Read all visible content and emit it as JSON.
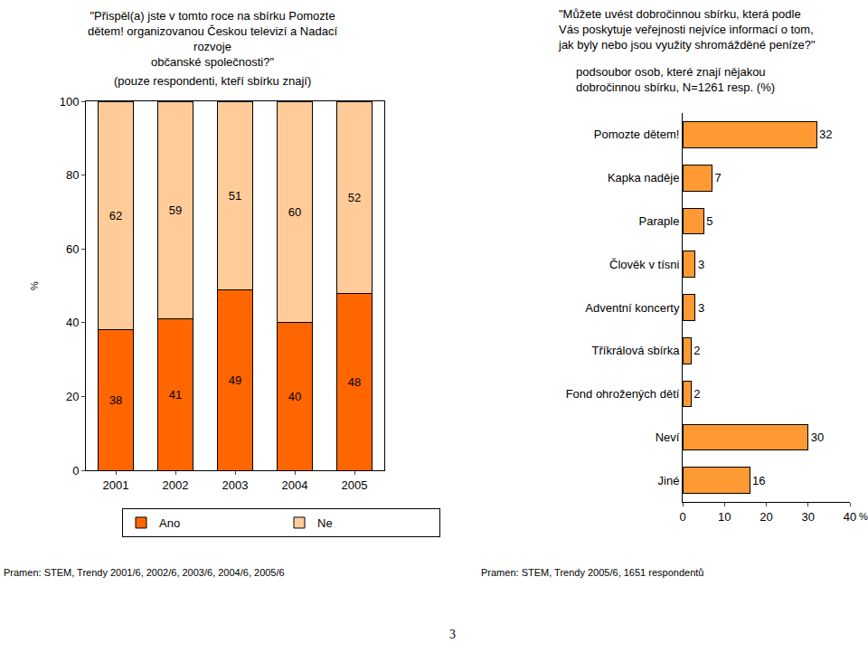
{
  "chart_data": [
    {
      "type": "bar",
      "title": "\"Přispěl(a) jste v tomto roce na sbírku Pomozte\ndětem! organizovanou Českou televizí a Nadací\nrozvoje\nobčanské společnosti?\"",
      "subtitle": "(pouze respondenti, kteří sbírku znají)",
      "y_label": "%",
      "categories": [
        "2001",
        "2002",
        "2003",
        "2004",
        "2005"
      ],
      "series": [
        {
          "name": "Ano",
          "color": "#ff6600",
          "values": [
            38,
            41,
            49,
            40,
            48
          ]
        },
        {
          "name": "Ne",
          "color": "#ffcc99",
          "values": [
            62,
            59,
            51,
            60,
            52
          ]
        }
      ],
      "stacked": true,
      "data_labels": true,
      "ylim": [
        0,
        100
      ],
      "yticks": [
        0,
        20,
        40,
        60,
        80,
        100
      ],
      "grid": false,
      "legend": "bottom",
      "annotations": [
        "Pramen: STEM, Trendy 2001/6, 2002/6, 2003/6, 2004/6, 2005/6"
      ]
    },
    {
      "type": "bar",
      "title": "\"Můžete uvést dobročinnou sbírku, která podle\nVás poskytuje veřejnosti nejvíce informací o tom,\njak byly nebo jsou využity shromážděné peníze?\"",
      "subtitle": "podsoubor osob, které znají nějakou\ndobročinnou sbírku, N=1261 resp. (%)",
      "x_label": "%",
      "orientation": "horizontal",
      "categories": [
        "Pomozte dětem!",
        "Kapka naděje",
        "Paraple",
        "Člověk v tísni",
        "Adventní koncerty",
        "Tříkrálová sbírka",
        "Fond ohrožených dětí",
        "Neví",
        "Jiné"
      ],
      "values": [
        32,
        7,
        5,
        3,
        3,
        2,
        2,
        30,
        16
      ],
      "color": "#ff9933",
      "data_labels": true,
      "xlim": [
        0,
        40
      ],
      "xticks": [
        0,
        10,
        20,
        30,
        40
      ],
      "grid": false,
      "annotations": [
        "Pramen: STEM, Trendy 2005/6, 1651 respondentů"
      ]
    }
  ],
  "page_number": 3
}
